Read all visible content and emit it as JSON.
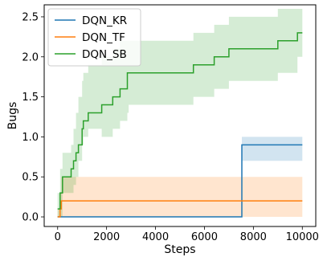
{
  "chart_data": {
    "type": "line",
    "xlabel": "Steps",
    "ylabel": "Bugs",
    "xlim": [
      -550,
      10550
    ],
    "ylim": [
      -0.12,
      2.65
    ],
    "x_ticks": [
      0,
      2000,
      4000,
      6000,
      8000,
      10000
    ],
    "y_ticks": [
      0.0,
      0.5,
      1.0,
      1.5,
      2.0,
      2.5
    ],
    "x_tick_labels": [
      "0",
      "2000",
      "4000",
      "6000",
      "8000",
      "10000"
    ],
    "y_tick_labels": [
      "0.0",
      "0.5",
      "1.0",
      "1.5",
      "2.0",
      "2.5"
    ],
    "grid": false,
    "legend_position": "top-left",
    "series": [
      {
        "name": "DQN_KR",
        "color": "#1f77b4",
        "x": [
          0,
          7520,
          7530,
          10000
        ],
        "mean": [
          0.0,
          0.0,
          0.9,
          0.9
        ],
        "lower": [
          0.0,
          0.0,
          0.7,
          0.7
        ],
        "upper": [
          0.0,
          0.0,
          1.0,
          1.0
        ]
      },
      {
        "name": "DQN_TF",
        "color": "#ff7f0e",
        "x": [
          0,
          100,
          150,
          10000
        ],
        "mean": [
          0.0,
          0.1,
          0.2,
          0.2
        ],
        "lower": [
          0.0,
          0.0,
          0.0,
          0.0
        ],
        "upper": [
          0.1,
          0.3,
          0.5,
          0.5
        ]
      },
      {
        "name": "DQN_SB",
        "color": "#2ca02c",
        "x": [
          0,
          100,
          200,
          300,
          550,
          650,
          750,
          850,
          1000,
          1050,
          1250,
          1800,
          2250,
          2350,
          2550,
          2850,
          2900,
          4000,
          5550,
          5700,
          6400,
          7000,
          9000,
          9800,
          10000
        ],
        "mean": [
          0.1,
          0.3,
          0.5,
          0.5,
          0.6,
          0.7,
          0.8,
          0.9,
          1.1,
          1.2,
          1.3,
          1.4,
          1.5,
          1.5,
          1.6,
          1.8,
          1.8,
          1.8,
          1.9,
          1.9,
          2.0,
          2.1,
          2.2,
          2.3,
          2.3
        ],
        "lower": [
          0.0,
          0.0,
          0.3,
          0.3,
          0.3,
          0.4,
          0.5,
          0.7,
          0.9,
          1.0,
          1.1,
          1.0,
          1.1,
          1.1,
          1.2,
          1.3,
          1.4,
          1.4,
          1.5,
          1.5,
          1.6,
          1.7,
          1.8,
          2.0,
          2.0
        ],
        "upper": [
          0.3,
          0.6,
          0.8,
          0.8,
          0.9,
          1.1,
          1.3,
          1.5,
          1.7,
          1.8,
          1.9,
          2.0,
          2.1,
          2.1,
          2.2,
          2.2,
          2.2,
          2.2,
          2.3,
          2.3,
          2.4,
          2.5,
          2.6,
          2.6,
          2.6
        ]
      }
    ]
  }
}
